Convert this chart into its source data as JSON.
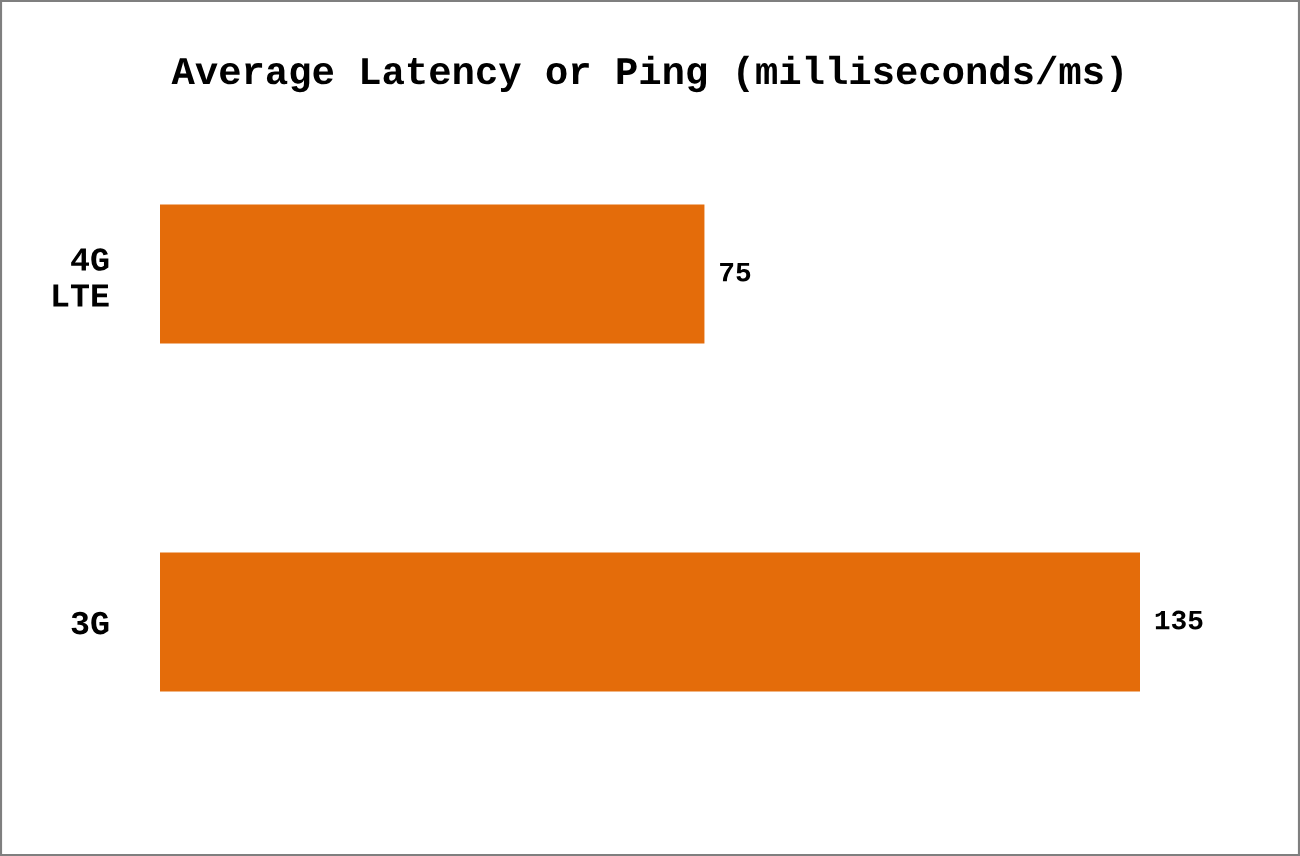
{
  "chart_data": {
    "type": "bar",
    "orientation": "horizontal",
    "title": "Average Latency or Ping (milliseconds/ms)",
    "categories": [
      "4G\nLTE",
      "3G"
    ],
    "values": [
      75,
      135
    ],
    "color": "#e46c0a",
    "data_labels": true,
    "grid": false,
    "legend": false
  }
}
